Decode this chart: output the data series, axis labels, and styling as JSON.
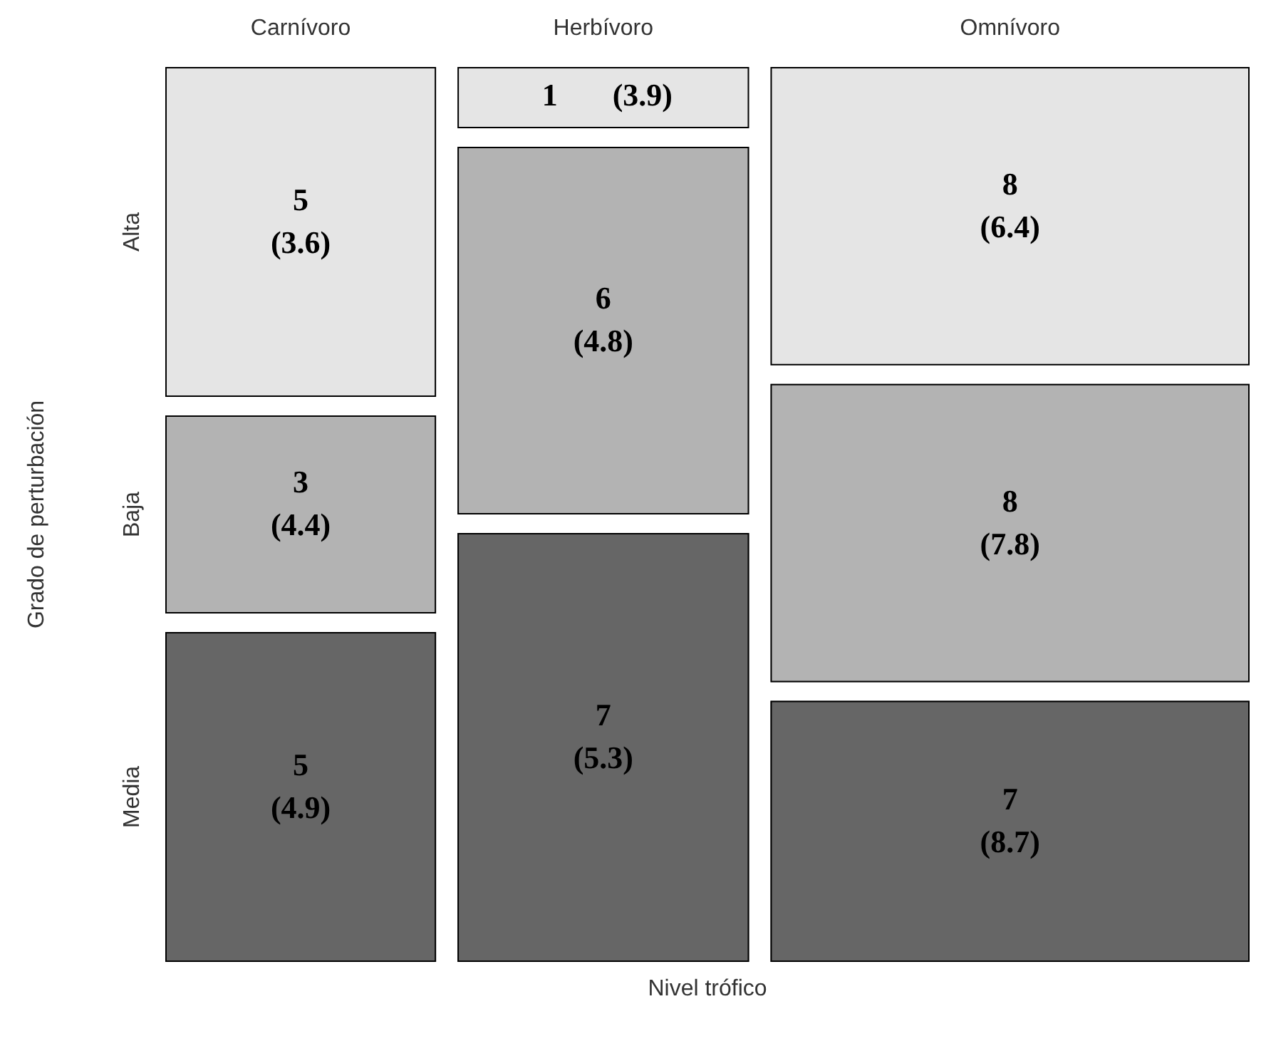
{
  "chart_data": {
    "type": "other",
    "xlabel": "Nivel trófico",
    "ylabel": "Grado de perturbación",
    "categories": [
      "Carnívoro",
      "Herbívoro",
      "Omnívoro"
    ],
    "series": [
      {
        "name": "Alta",
        "color": "#e5e5e5",
        "values": [
          5,
          1,
          8
        ]
      },
      {
        "name": "Baja",
        "color": "#b3b3b3",
        "values": [
          3,
          6,
          8
        ]
      },
      {
        "name": "Media",
        "color": "#666666",
        "values": [
          5,
          7,
          7
        ]
      }
    ],
    "data_labels": true,
    "annotations": [
      "(3.6)",
      "(3.9)",
      "(6.4)",
      "(4.4)",
      "(4.8)",
      "(7.8)",
      "(4.9)",
      "(5.3)",
      "(8.7)"
    ]
  }
}
